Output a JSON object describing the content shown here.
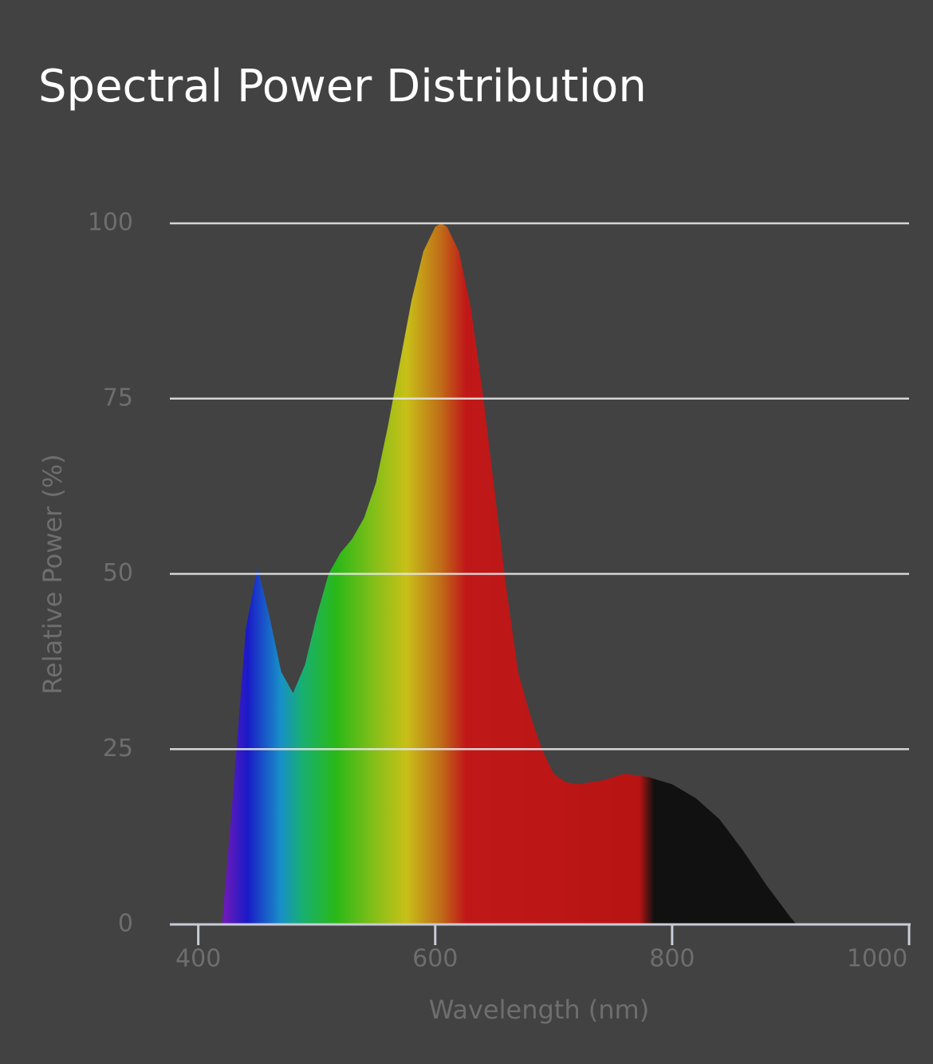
{
  "chart_data": {
    "type": "area",
    "title": "Spectral Power Distribution",
    "x_label": "Wavelength (nm)",
    "y_label": "Relative Power (%)",
    "x": [
      420,
      430,
      440,
      450,
      460,
      470,
      480,
      490,
      500,
      510,
      520,
      530,
      540,
      550,
      560,
      570,
      580,
      590,
      600,
      605,
      610,
      620,
      630,
      640,
      650,
      660,
      670,
      680,
      690,
      700,
      710,
      720,
      740,
      760,
      780,
      800,
      820,
      840,
      860,
      880,
      900,
      905
    ],
    "values": [
      0,
      20,
      42,
      51,
      44,
      36,
      33,
      37,
      44,
      50,
      53,
      55,
      58,
      63,
      71,
      80,
      89,
      96,
      99.5,
      100,
      99.5,
      96,
      88,
      76,
      62,
      48,
      36,
      30,
      25,
      21.5,
      20.3,
      20,
      20.5,
      21.5,
      21,
      20,
      18,
      15,
      10.5,
      5.5,
      1,
      0
    ],
    "xlim": [
      376,
      1000
    ],
    "xticks": [
      400,
      600,
      800,
      1000
    ],
    "ylim": [
      0,
      100
    ],
    "yticks": [
      0,
      25,
      50,
      75,
      100
    ],
    "grid": true
  }
}
